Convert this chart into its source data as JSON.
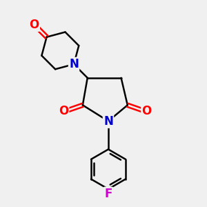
{
  "background_color": "#f0f0f0",
  "bond_color": "#000000",
  "n_color": "#0000cc",
  "o_color": "#ff0000",
  "f_color": "#cc00cc",
  "line_width": 1.8,
  "figsize": [
    3.0,
    3.0
  ],
  "dpi": 100,
  "xlim": [
    -2.5,
    2.5
  ],
  "ylim": [
    -3.2,
    3.2
  ]
}
